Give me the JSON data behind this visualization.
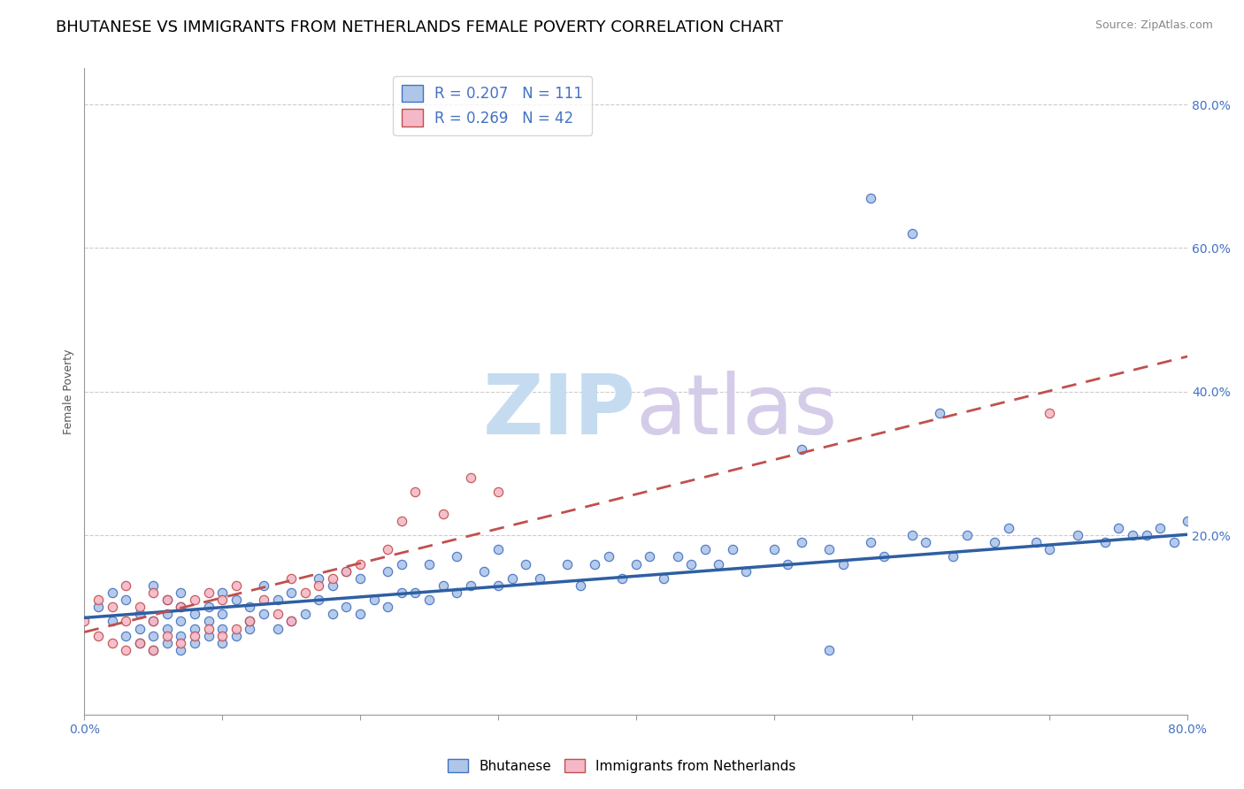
{
  "title": "BHUTANESE VS IMMIGRANTS FROM NETHERLANDS FEMALE POVERTY CORRELATION CHART",
  "source": "Source: ZipAtlas.com",
  "ylabel": "Female Poverty",
  "y_tick_positions": [
    0.0,
    0.2,
    0.4,
    0.6,
    0.8
  ],
  "y_tick_labels": [
    "",
    "20.0%",
    "40.0%",
    "60.0%",
    "80.0%"
  ],
  "x_tick_positions": [
    0.0,
    0.1,
    0.2,
    0.3,
    0.4,
    0.5,
    0.6,
    0.7,
    0.8
  ],
  "xlim": [
    0.0,
    0.8
  ],
  "ylim": [
    -0.05,
    0.85
  ],
  "series1_color": "#aec6e8",
  "series1_edge_color": "#4472c4",
  "series2_color": "#f4b8c8",
  "series2_edge_color": "#c0504d",
  "trend1_color": "#2e5fa3",
  "trend2_color": "#c0504d",
  "R1": 0.207,
  "N1": 111,
  "R2": 0.269,
  "N2": 42,
  "legend_label1": "Bhutanese",
  "legend_label2": "Immigrants from Netherlands",
  "title_fontsize": 13,
  "axis_label_fontsize": 9,
  "tick_fontsize": 10,
  "legend_fontsize": 12,
  "marker_size": 55,
  "series1_x": [
    0.01,
    0.02,
    0.02,
    0.03,
    0.03,
    0.04,
    0.04,
    0.04,
    0.05,
    0.05,
    0.05,
    0.05,
    0.06,
    0.06,
    0.06,
    0.06,
    0.07,
    0.07,
    0.07,
    0.07,
    0.07,
    0.08,
    0.08,
    0.08,
    0.09,
    0.09,
    0.09,
    0.1,
    0.1,
    0.1,
    0.1,
    0.11,
    0.11,
    0.12,
    0.12,
    0.12,
    0.13,
    0.13,
    0.14,
    0.14,
    0.15,
    0.15,
    0.16,
    0.17,
    0.17,
    0.18,
    0.18,
    0.19,
    0.19,
    0.2,
    0.2,
    0.21,
    0.22,
    0.22,
    0.23,
    0.23,
    0.24,
    0.25,
    0.25,
    0.26,
    0.27,
    0.27,
    0.28,
    0.29,
    0.3,
    0.3,
    0.31,
    0.32,
    0.33,
    0.35,
    0.36,
    0.37,
    0.38,
    0.39,
    0.4,
    0.41,
    0.42,
    0.43,
    0.44,
    0.45,
    0.46,
    0.47,
    0.48,
    0.5,
    0.51,
    0.52,
    0.54,
    0.55,
    0.57,
    0.58,
    0.6,
    0.61,
    0.63,
    0.64,
    0.66,
    0.67,
    0.69,
    0.7,
    0.72,
    0.74,
    0.75,
    0.76,
    0.77,
    0.78,
    0.79,
    0.8,
    0.52,
    0.54,
    0.57,
    0.6,
    0.62
  ],
  "series1_y": [
    0.1,
    0.08,
    0.12,
    0.06,
    0.11,
    0.05,
    0.09,
    0.07,
    0.04,
    0.08,
    0.06,
    0.13,
    0.05,
    0.09,
    0.07,
    0.11,
    0.04,
    0.08,
    0.06,
    0.12,
    0.1,
    0.05,
    0.09,
    0.07,
    0.06,
    0.1,
    0.08,
    0.05,
    0.09,
    0.07,
    0.12,
    0.06,
    0.11,
    0.07,
    0.1,
    0.08,
    0.09,
    0.13,
    0.07,
    0.11,
    0.08,
    0.12,
    0.09,
    0.11,
    0.14,
    0.09,
    0.13,
    0.1,
    0.15,
    0.09,
    0.14,
    0.11,
    0.1,
    0.15,
    0.12,
    0.16,
    0.12,
    0.11,
    0.16,
    0.13,
    0.12,
    0.17,
    0.13,
    0.15,
    0.13,
    0.18,
    0.14,
    0.16,
    0.14,
    0.16,
    0.13,
    0.16,
    0.17,
    0.14,
    0.16,
    0.17,
    0.14,
    0.17,
    0.16,
    0.18,
    0.16,
    0.18,
    0.15,
    0.18,
    0.16,
    0.19,
    0.18,
    0.16,
    0.19,
    0.17,
    0.2,
    0.19,
    0.17,
    0.2,
    0.19,
    0.21,
    0.19,
    0.18,
    0.2,
    0.19,
    0.21,
    0.2,
    0.2,
    0.21,
    0.19,
    0.22,
    0.32,
    0.04,
    0.67,
    0.62,
    0.37
  ],
  "series2_x": [
    0.0,
    0.01,
    0.01,
    0.02,
    0.02,
    0.03,
    0.03,
    0.03,
    0.04,
    0.04,
    0.05,
    0.05,
    0.05,
    0.06,
    0.06,
    0.07,
    0.07,
    0.08,
    0.08,
    0.09,
    0.09,
    0.1,
    0.1,
    0.11,
    0.11,
    0.12,
    0.13,
    0.14,
    0.15,
    0.15,
    0.16,
    0.17,
    0.18,
    0.19,
    0.2,
    0.22,
    0.23,
    0.24,
    0.26,
    0.28,
    0.3,
    0.7
  ],
  "series2_y": [
    0.08,
    0.06,
    0.11,
    0.05,
    0.1,
    0.04,
    0.08,
    0.13,
    0.05,
    0.1,
    0.04,
    0.08,
    0.12,
    0.06,
    0.11,
    0.05,
    0.1,
    0.06,
    0.11,
    0.07,
    0.12,
    0.06,
    0.11,
    0.07,
    0.13,
    0.08,
    0.11,
    0.09,
    0.08,
    0.14,
    0.12,
    0.13,
    0.14,
    0.15,
    0.16,
    0.18,
    0.22,
    0.26,
    0.23,
    0.28,
    0.26,
    0.37
  ],
  "trend1_slope": 0.145,
  "trend1_intercept": 0.085,
  "trend2_slope": 0.48,
  "trend2_intercept": 0.065
}
